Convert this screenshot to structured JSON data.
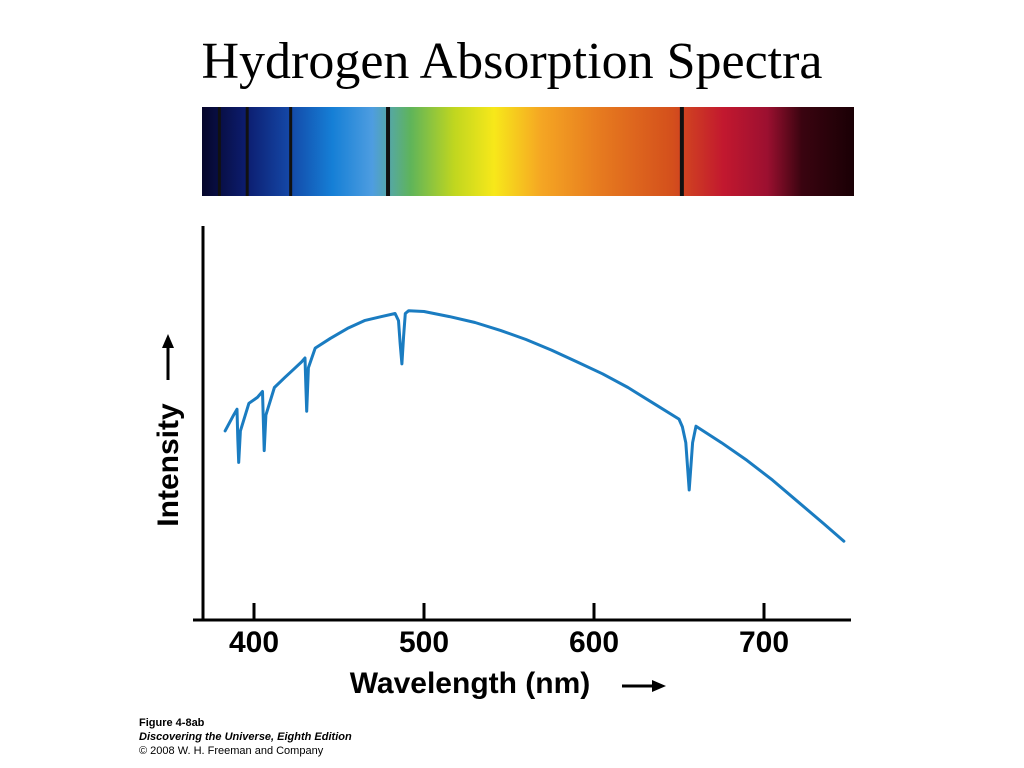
{
  "title": "Hydrogen Absorption Spectra",
  "caption": {
    "figure": "Figure 4-8ab",
    "book": "Discovering the Universe, Eighth Edition",
    "copyright": "© 2008 W. H. Freeman and Company"
  },
  "spectrum": {
    "range_nm": [
      380,
      755
    ],
    "color_stops": [
      {
        "nm": 380,
        "color": "#06062a"
      },
      {
        "nm": 405,
        "color": "#0c1c6e"
      },
      {
        "nm": 430,
        "color": "#1447a6"
      },
      {
        "nm": 455,
        "color": "#157fd6"
      },
      {
        "nm": 478,
        "color": "#4e9de0"
      },
      {
        "nm": 500,
        "color": "#5fb45a"
      },
      {
        "nm": 525,
        "color": "#c0d61f"
      },
      {
        "nm": 548,
        "color": "#f7e81a"
      },
      {
        "nm": 575,
        "color": "#f5a623"
      },
      {
        "nm": 610,
        "color": "#e6791f"
      },
      {
        "nm": 650,
        "color": "#d4501c"
      },
      {
        "nm": 680,
        "color": "#c2182f"
      },
      {
        "nm": 705,
        "color": "#9c1030"
      },
      {
        "nm": 725,
        "color": "#3a0410"
      },
      {
        "nm": 755,
        "color": "#1a0005"
      }
    ],
    "absorption_lines_nm": [
      390,
      406,
      431,
      487,
      656
    ]
  },
  "chart_data": {
    "type": "line",
    "title": "",
    "xlabel": "Wavelength (nm)",
    "ylabel": "Intensity",
    "xlim": [
      375,
      755
    ],
    "ylim": [
      0,
      1
    ],
    "xticks": [
      400,
      500,
      600,
      700
    ],
    "grid": false,
    "series": [
      {
        "color": "#1a7cc1",
        "x": [
          383,
          388,
          390,
          390.5,
          391,
          392,
          397,
          402,
          405,
          405.5,
          406,
          407,
          412,
          418,
          423,
          428,
          430,
          430.5,
          431,
          432,
          436,
          445,
          455,
          465,
          475,
          483,
          485,
          486,
          487,
          488,
          489,
          491,
          500,
          515,
          530,
          545,
          560,
          575,
          590,
          605,
          620,
          635,
          650,
          652,
          654,
          656,
          658,
          660,
          675,
          690,
          705,
          720,
          735,
          747
        ],
        "y": [
          0.48,
          0.52,
          0.535,
          0.46,
          0.4,
          0.48,
          0.55,
          0.565,
          0.58,
          0.5,
          0.43,
          0.52,
          0.59,
          0.615,
          0.635,
          0.655,
          0.665,
          0.59,
          0.53,
          0.64,
          0.69,
          0.715,
          0.74,
          0.76,
          0.77,
          0.778,
          0.76,
          0.7,
          0.65,
          0.72,
          0.778,
          0.785,
          0.783,
          0.77,
          0.755,
          0.735,
          0.712,
          0.685,
          0.655,
          0.625,
          0.59,
          0.55,
          0.51,
          0.49,
          0.45,
          0.33,
          0.45,
          0.492,
          0.45,
          0.405,
          0.355,
          0.3,
          0.245,
          0.2
        ]
      }
    ]
  }
}
